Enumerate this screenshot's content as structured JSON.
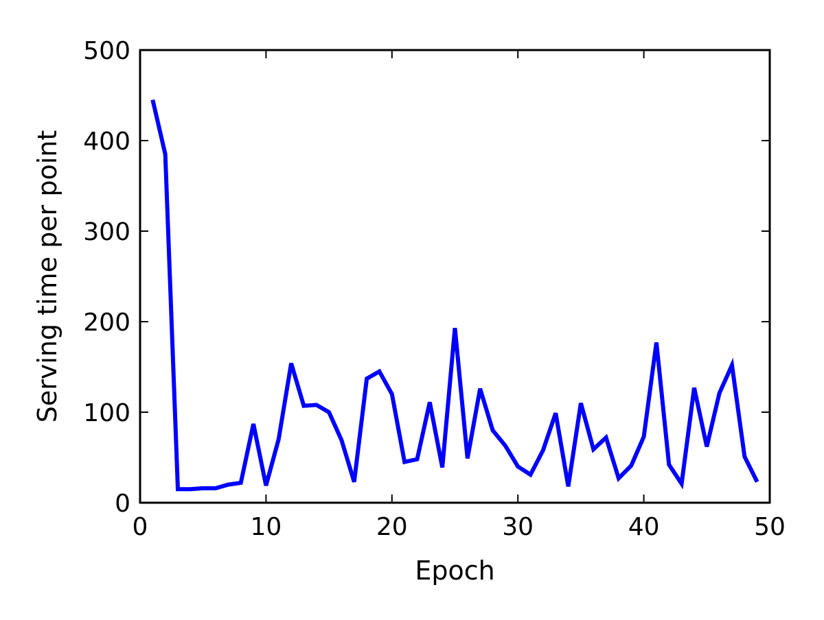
{
  "chart_data": {
    "type": "line",
    "title": "",
    "xlabel": "Epoch",
    "ylabel": "Serving time per point",
    "xlim": [
      0,
      50
    ],
    "ylim": [
      0,
      500
    ],
    "x_ticks": [
      0,
      10,
      20,
      30,
      40,
      50
    ],
    "y_ticks": [
      0,
      100,
      200,
      300,
      400,
      500
    ],
    "x_tick_labels": [
      "0",
      "10",
      "20",
      "30",
      "40",
      "50"
    ],
    "y_tick_labels": [
      "0",
      "100",
      "200",
      "300",
      "400",
      "500"
    ],
    "grid": false,
    "legend": "none",
    "series": [
      {
        "color": "#0000ff",
        "x": [
          1,
          2,
          3,
          4,
          5,
          6,
          7,
          8,
          9,
          10,
          11,
          12,
          13,
          14,
          15,
          16,
          17,
          18,
          19,
          20,
          21,
          22,
          23,
          24,
          25,
          26,
          27,
          28,
          29,
          30,
          31,
          32,
          33,
          34,
          35,
          36,
          37,
          38,
          39,
          40,
          41,
          42,
          43,
          44,
          45,
          46,
          47,
          48,
          49
        ],
        "y": [
          445,
          385,
          15,
          15,
          16,
          16,
          20,
          22,
          87,
          19,
          70,
          154,
          107,
          108,
          100,
          69,
          23,
          137,
          145,
          120,
          45,
          48,
          111,
          39,
          193,
          49,
          126,
          80,
          63,
          40,
          31,
          58,
          99,
          18,
          110,
          59,
          72,
          27,
          41,
          73,
          177,
          42,
          21,
          127,
          62,
          121,
          152,
          51,
          23
        ]
      }
    ]
  }
}
